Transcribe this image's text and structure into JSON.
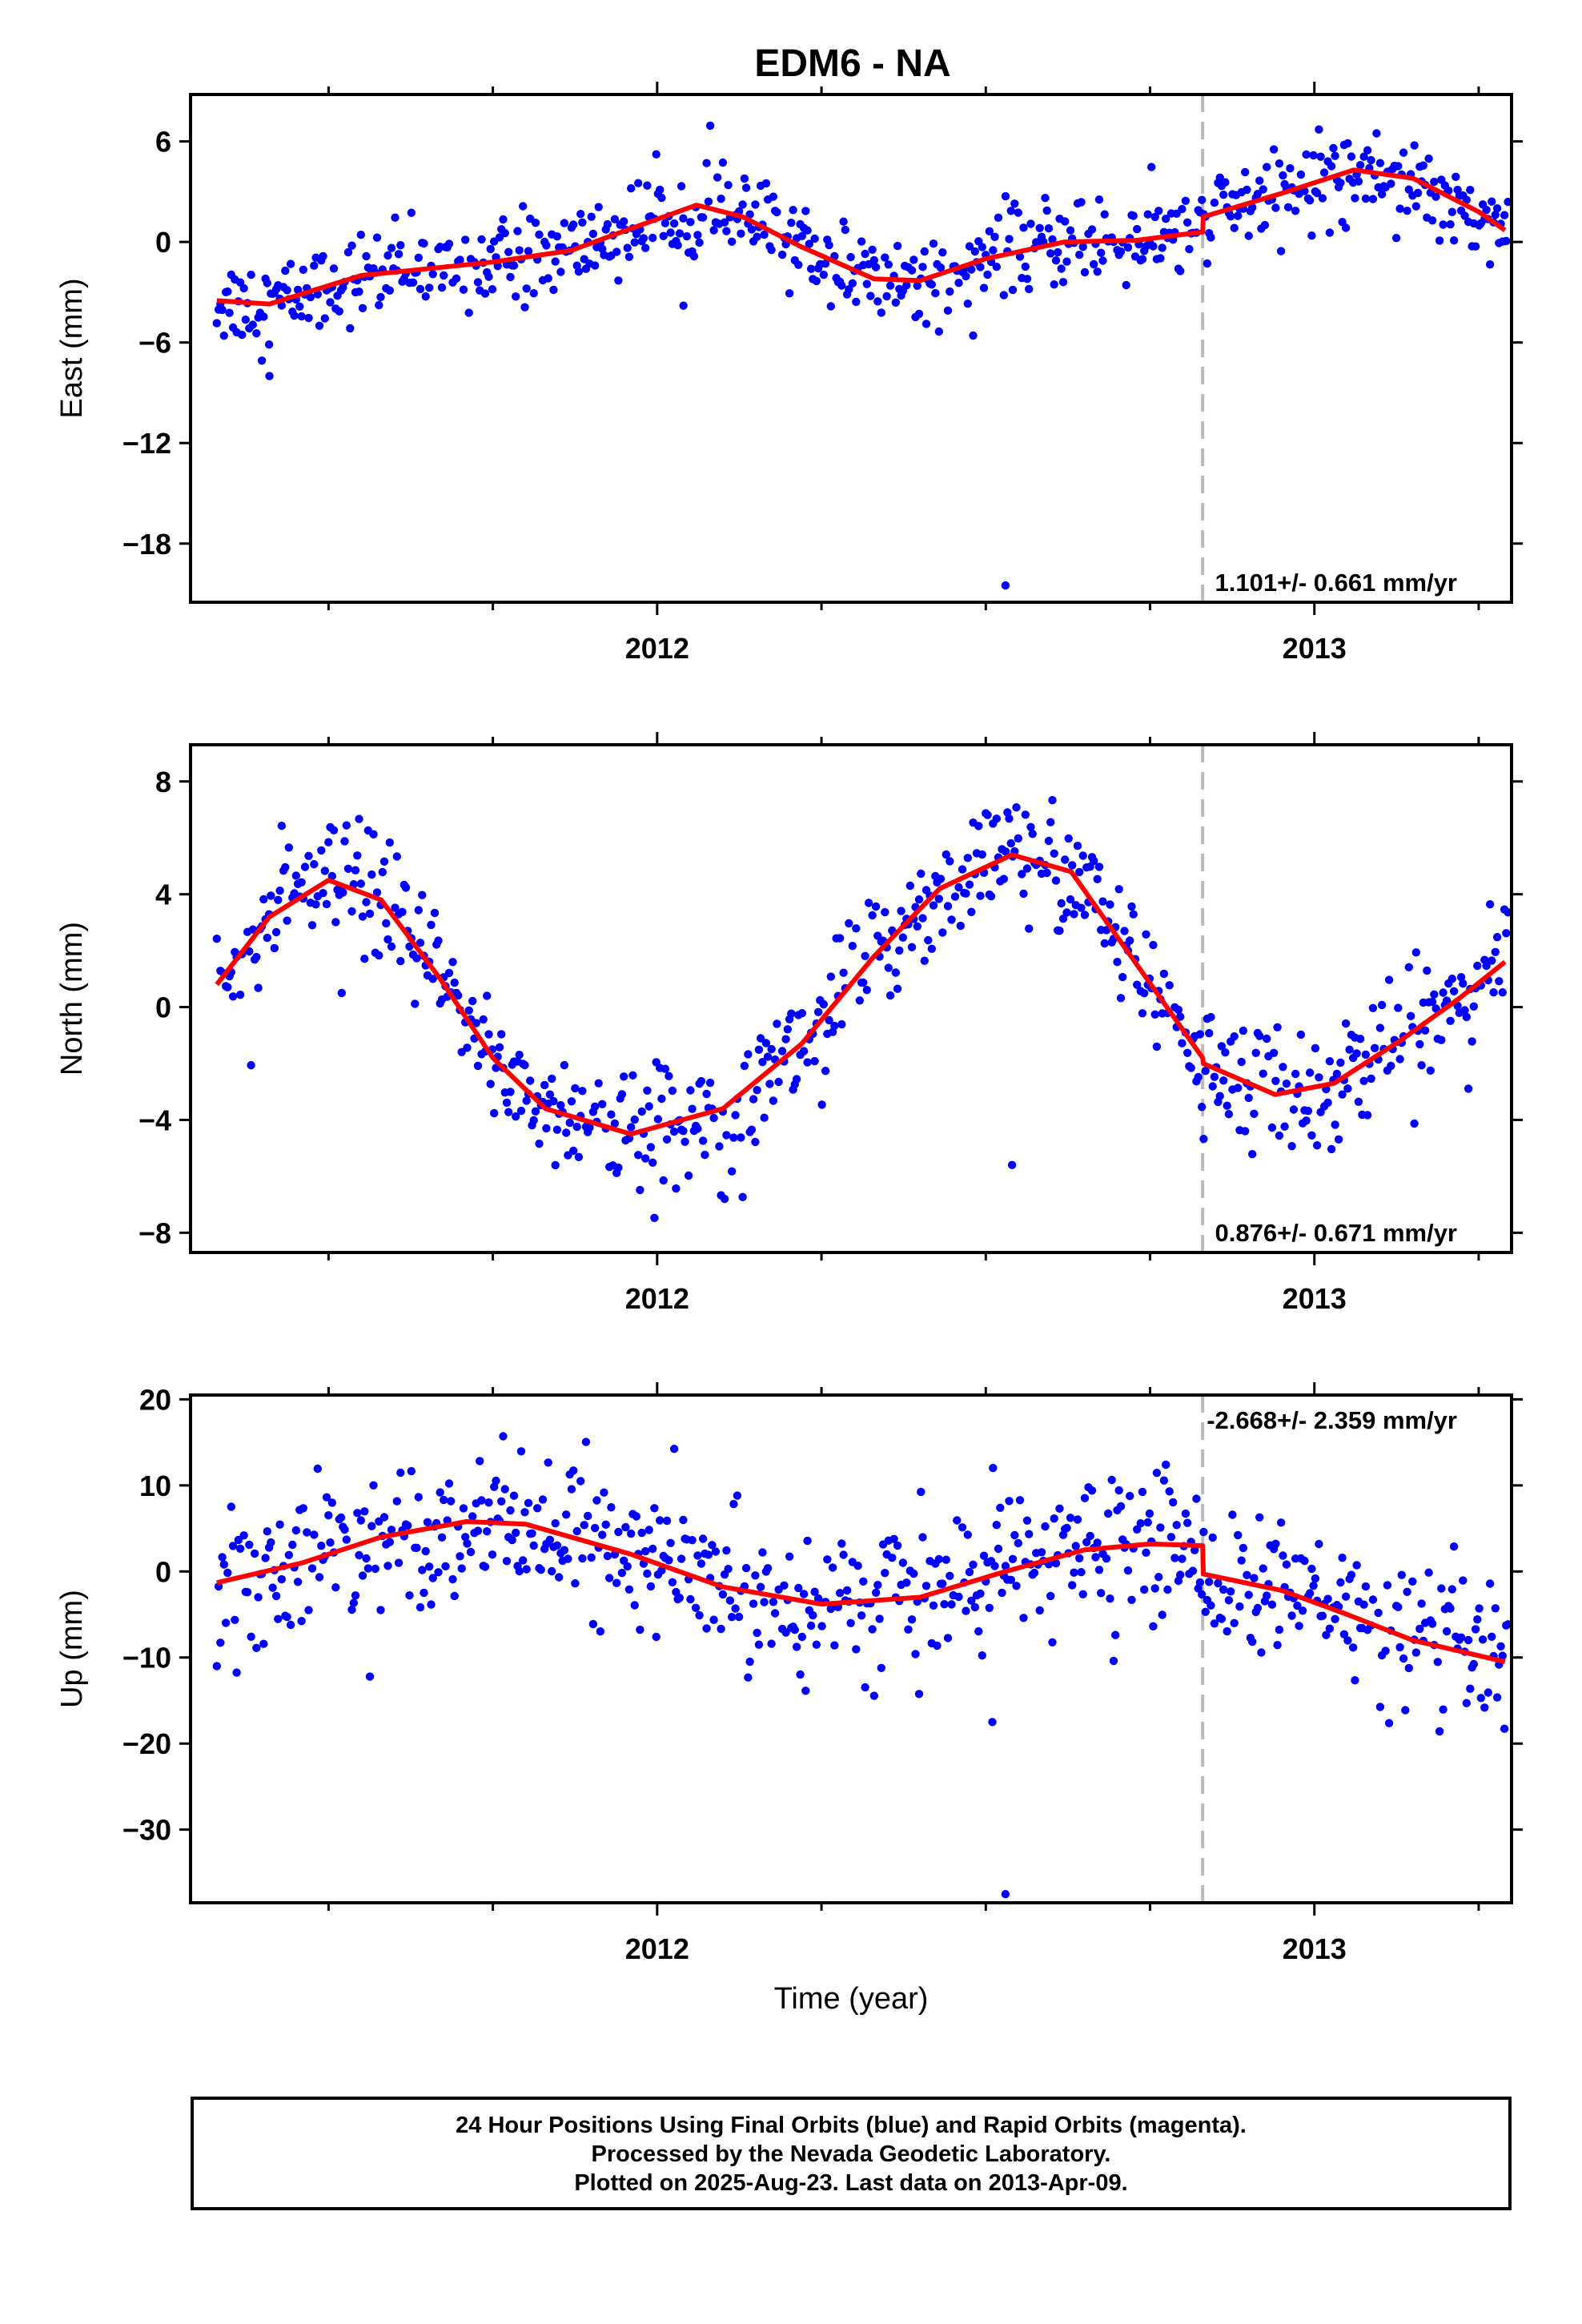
{
  "title": "EDM6 - NA",
  "xlabel": "Time (year)",
  "colors": {
    "points": "#0000ff",
    "fit": "#ff0000",
    "break_line": "#bbbbbb"
  },
  "footer": {
    "line1": "24 Hour Positions Using Final Orbits (blue) and Rapid Orbits (magenta).",
    "line2": "Processed by the Nevada Geodetic Laboratory.",
    "line3": "Plotted on 2025-Aug-23. Last data on 2013-Apr-09."
  },
  "chart_data": [
    {
      "type": "scatter",
      "ylabel": "East (mm)",
      "rate_text": "1.101+/- 0.661 mm/yr",
      "rate_position": "bottom-right",
      "xlim": [
        2011.29,
        2013.3
      ],
      "ylim": [
        -21.5,
        8.8
      ],
      "yticks": [
        6,
        0,
        -6,
        -12,
        -18
      ],
      "xticks": [
        2012,
        2013
      ],
      "minor_xticks": [
        2011.5,
        2011.75,
        2012.25,
        2012.5,
        2012.75,
        2013.25
      ],
      "break_x": 2012.83,
      "noise": 1.3,
      "fit": {
        "x": [
          2011.33,
          2011.41,
          2011.55,
          2011.75,
          2011.87,
          2011.96,
          2012.06,
          2012.13,
          2012.22,
          2012.33,
          2012.4,
          2012.5,
          2012.62,
          2012.73,
          2012.83,
          2012.831,
          2012.95,
          2013.06,
          2013.15,
          2013.25,
          2013.29
        ],
        "y": [
          -3.5,
          -3.7,
          -2.0,
          -1.2,
          -0.5,
          0.8,
          2.2,
          1.5,
          -0.3,
          -2.2,
          -2.3,
          -1.0,
          0.0,
          0.1,
          0.6,
          1.5,
          2.9,
          4.3,
          3.8,
          1.8,
          0.7
        ]
      },
      "outliers": [
        {
          "x": 2012.53,
          "y": -20.5
        },
        {
          "x": 2012.04,
          "y": -3.8
        },
        {
          "x": 2011.41,
          "y": -8.0
        }
      ]
    },
    {
      "type": "scatter",
      "ylabel": "North (mm)",
      "rate_text": "0.876+/- 0.671 mm/yr",
      "rate_position": "bottom-right",
      "xlim": [
        2011.29,
        2013.3
      ],
      "ylim": [
        -8.7,
        9.3
      ],
      "yticks": [
        8,
        4,
        0,
        -4,
        -8
      ],
      "xticks": [
        2012,
        2013
      ],
      "minor_xticks": [
        2011.5,
        2011.75,
        2012.25,
        2012.5,
        2012.75,
        2013.25
      ],
      "break_x": 2012.83,
      "noise": 1.1,
      "fit": {
        "x": [
          2011.33,
          2011.41,
          2011.5,
          2011.58,
          2011.67,
          2011.75,
          2011.83,
          2011.96,
          2012.1,
          2012.22,
          2012.33,
          2012.43,
          2012.54,
          2012.63,
          2012.73,
          2012.83,
          2012.831,
          2012.94,
          2013.03,
          2013.13,
          2013.22,
          2013.29
        ],
        "y": [
          0.8,
          3.2,
          4.5,
          3.8,
          1.0,
          -1.8,
          -3.6,
          -4.5,
          -3.6,
          -1.3,
          1.8,
          4.2,
          5.4,
          4.8,
          1.5,
          -1.8,
          -2.0,
          -3.1,
          -2.7,
          -1.2,
          0.3,
          1.6
        ]
      },
      "outliers": [
        {
          "x": 2012.54,
          "y": -5.6
        },
        {
          "x": 2011.52,
          "y": 0.5
        }
      ]
    },
    {
      "type": "scatter",
      "ylabel": "Up (mm)",
      "rate_text": "-2.668+/- 2.359 mm/yr",
      "rate_position": "top-right",
      "xlim": [
        2011.29,
        2013.3
      ],
      "ylim": [
        -38.5,
        20.5
      ],
      "yticks": [
        20,
        10,
        0,
        -10,
        -20,
        -30
      ],
      "xticks": [
        2012,
        2013
      ],
      "minor_xticks": [
        2011.5,
        2011.75,
        2012.25,
        2012.5,
        2012.75,
        2013.25
      ],
      "break_x": 2012.83,
      "noise": 4.2,
      "fit": {
        "x": [
          2011.33,
          2011.46,
          2011.58,
          2011.71,
          2011.8,
          2011.96,
          2012.1,
          2012.25,
          2012.4,
          2012.53,
          2012.65,
          2012.75,
          2012.83,
          2012.831,
          2012.95,
          2013.05,
          2013.15,
          2013.29
        ],
        "y": [
          -1.3,
          1.0,
          4.0,
          5.8,
          5.5,
          2.0,
          -1.8,
          -3.8,
          -3.0,
          0.0,
          2.5,
          3.2,
          3.0,
          -0.3,
          -2.2,
          -5.0,
          -8.0,
          -10.5
        ]
      },
      "outliers": [
        {
          "x": 2012.53,
          "y": -37.5
        },
        {
          "x": 2012.51,
          "y": -17.5
        },
        {
          "x": 2011.33,
          "y": -11.0
        }
      ]
    }
  ]
}
